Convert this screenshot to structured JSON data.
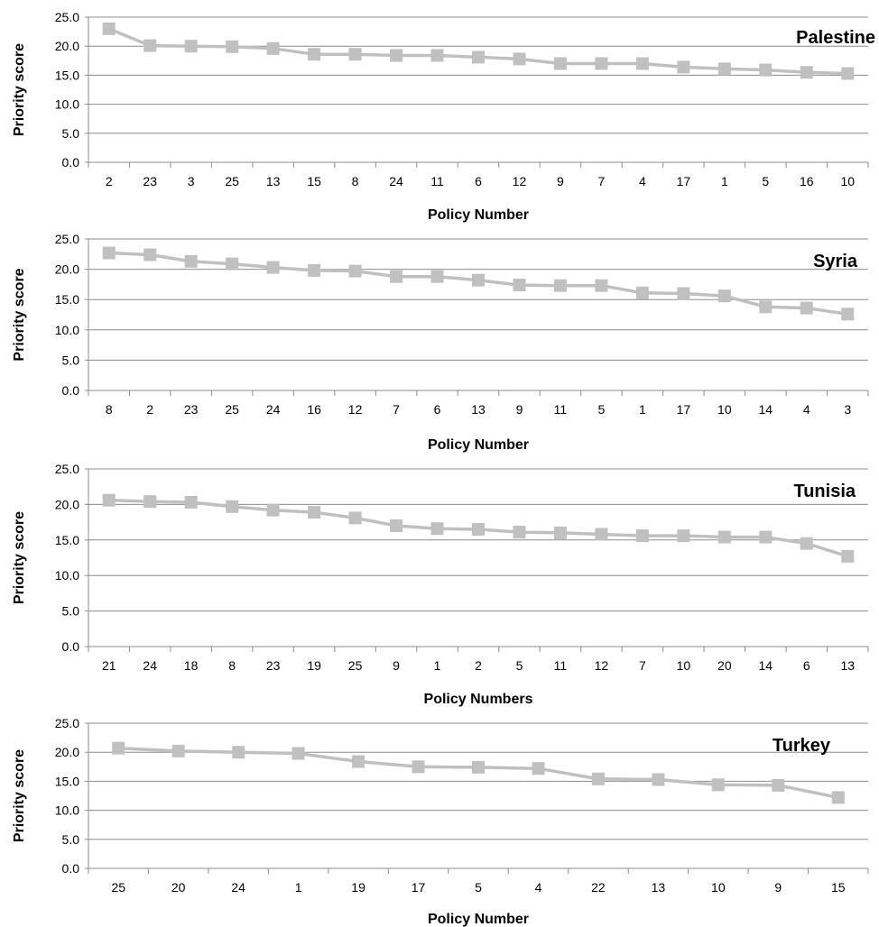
{
  "colors": {
    "series": "#c0c0c0",
    "marker": "#c0c0c0"
  },
  "chart_data": [
    {
      "type": "line",
      "title": "Palestine",
      "xlabel": "Policy Number",
      "ylabel": "Priority score",
      "ylim": [
        0,
        25
      ],
      "yticks": [
        "0.0",
        "5.0",
        "10.0",
        "15.0",
        "20.0",
        "25.0"
      ],
      "grid": true,
      "categories": [
        "2",
        "23",
        "3",
        "25",
        "13",
        "15",
        "8",
        "24",
        "11",
        "6",
        "12",
        "9",
        "7",
        "4",
        "17",
        "1",
        "5",
        "16",
        "10"
      ],
      "values": [
        23.0,
        20.1,
        20.0,
        19.9,
        19.6,
        18.6,
        18.6,
        18.4,
        18.4,
        18.1,
        17.8,
        17.0,
        17.0,
        17.0,
        16.4,
        16.1,
        15.9,
        15.5,
        15.3
      ]
    },
    {
      "type": "line",
      "title": "Syria",
      "xlabel": "Policy Number",
      "ylabel": "Priority score",
      "ylim": [
        0,
        25
      ],
      "yticks": [
        "0.0",
        "5.0",
        "10.0",
        "15.0",
        "20.0",
        "25.0"
      ],
      "grid": true,
      "categories": [
        "8",
        "2",
        "23",
        "25",
        "24",
        "16",
        "12",
        "7",
        "6",
        "13",
        "9",
        "11",
        "5",
        "1",
        "17",
        "10",
        "14",
        "4",
        "3"
      ],
      "values": [
        22.7,
        22.4,
        21.3,
        20.9,
        20.3,
        19.8,
        19.7,
        18.8,
        18.8,
        18.2,
        17.4,
        17.3,
        17.3,
        16.1,
        16.0,
        15.6,
        13.8,
        13.6,
        12.6
      ]
    },
    {
      "type": "line",
      "title": "Tunisia",
      "xlabel": "Policy Numbers",
      "ylabel": "Priority score",
      "ylim": [
        0,
        25
      ],
      "yticks": [
        "0.0",
        "5.0",
        "10.0",
        "15.0",
        "20.0",
        "25.0"
      ],
      "grid": true,
      "categories": [
        "21",
        "24",
        "18",
        "8",
        "23",
        "19",
        "25",
        "9",
        "1",
        "2",
        "5",
        "11",
        "12",
        "7",
        "10",
        "20",
        "14",
        "6",
        "13"
      ],
      "values": [
        20.6,
        20.4,
        20.3,
        19.7,
        19.2,
        18.9,
        18.1,
        17.0,
        16.6,
        16.5,
        16.1,
        16.0,
        15.8,
        15.6,
        15.6,
        15.4,
        15.4,
        14.5,
        12.7
      ]
    },
    {
      "type": "line",
      "title": "Turkey",
      "xlabel": "Policy Number",
      "ylabel": "Priority score",
      "ylim": [
        0,
        25
      ],
      "yticks": [
        "0.0",
        "5.0",
        "10.0",
        "15.0",
        "20.0",
        "25.0"
      ],
      "grid": true,
      "categories": [
        "25",
        "20",
        "24",
        "1",
        "19",
        "17",
        "5",
        "4",
        "22",
        "13",
        "10",
        "9",
        "15"
      ],
      "values": [
        20.7,
        20.2,
        20.0,
        19.8,
        18.4,
        17.5,
        17.4,
        17.2,
        15.4,
        15.3,
        14.4,
        14.3,
        12.2
      ]
    }
  ]
}
